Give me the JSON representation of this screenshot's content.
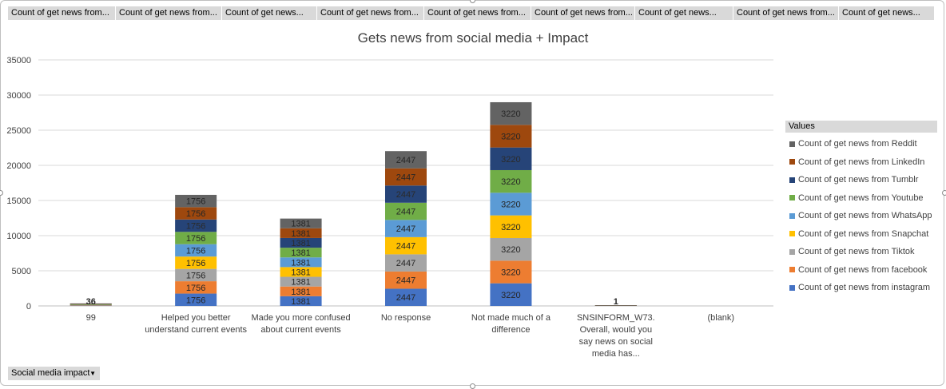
{
  "field_buttons": [
    "Count of get news from...",
    "Count of get news from...",
    "Count of get news...",
    "Count of get news from...",
    "Count of get news from...",
    "Count of get news from...",
    "Count of get news...",
    "Count of get news from...",
    "Count of get news..."
  ],
  "axis_field": {
    "label": "Social media impact",
    "dropdown_icon": "triangle-down-icon"
  },
  "chart_data": {
    "type": "bar",
    "stacked": true,
    "title": "Gets news from social media + Impact",
    "xlabel": "",
    "ylabel": "",
    "ylim": [
      0,
      35000
    ],
    "yticks": [
      0,
      5000,
      10000,
      15000,
      20000,
      25000,
      30000,
      35000
    ],
    "grid": true,
    "legend_title": "Values",
    "legend_position": "right",
    "categories": [
      "99",
      "Helped you better understand current events",
      "Made you more confused about current events",
      "No response",
      "Not made much of a difference",
      "SNSINFORM_W73. Overall, would you say news on social media has...",
      "(blank)"
    ],
    "series": [
      {
        "name": "Count of get news from instagram",
        "color": "#4472c4",
        "values": [
          36,
          1756,
          1381,
          2447,
          3220,
          1,
          0
        ]
      },
      {
        "name": "Count of get news from facebook",
        "color": "#ed7d31",
        "values": [
          36,
          1756,
          1381,
          2447,
          3220,
          1,
          0
        ]
      },
      {
        "name": "Count of get news from Tiktok",
        "color": "#a5a5a5",
        "values": [
          36,
          1756,
          1381,
          2447,
          3220,
          1,
          0
        ]
      },
      {
        "name": "Count of get news from Snapchat",
        "color": "#ffc000",
        "values": [
          36,
          1756,
          1381,
          2447,
          3220,
          1,
          0
        ]
      },
      {
        "name": "Count of get news from WhatsApp",
        "color": "#5b9bd5",
        "values": [
          36,
          1756,
          1381,
          2447,
          3220,
          1,
          0
        ]
      },
      {
        "name": "Count of get news from Youtube",
        "color": "#70ad47",
        "values": [
          36,
          1756,
          1381,
          2447,
          3220,
          1,
          0
        ]
      },
      {
        "name": "Count of get news from Tumblr",
        "color": "#264478",
        "values": [
          36,
          1756,
          1381,
          2447,
          3220,
          1,
          0
        ]
      },
      {
        "name": "Count of get news from LinkedIn",
        "color": "#9e480e",
        "values": [
          36,
          1756,
          1381,
          2447,
          3220,
          1,
          0
        ]
      },
      {
        "name": "Count of get news from Reddit",
        "color": "#636363",
        "values": [
          36,
          1756,
          1381,
          2447,
          3220,
          1,
          0
        ]
      }
    ],
    "visible_data_labels": [
      "36",
      "1756",
      "1381",
      "2447",
      "3220",
      "1"
    ]
  }
}
